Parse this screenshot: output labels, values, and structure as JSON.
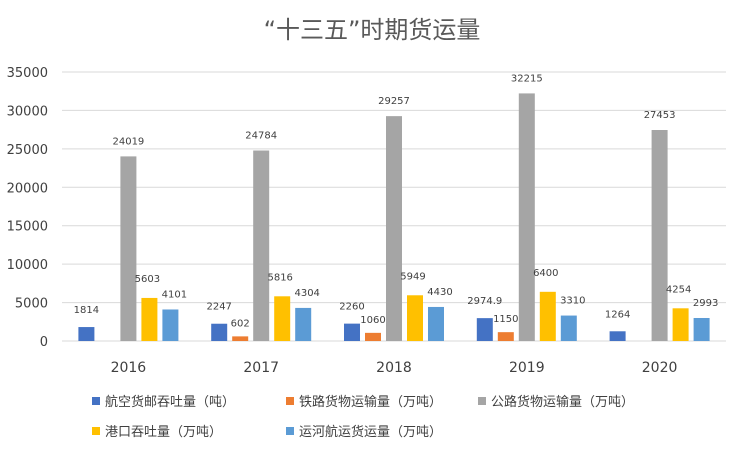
{
  "chart_data": {
    "type": "bar",
    "title": "“十三五”时期货运量",
    "categories": [
      "2016",
      "2017",
      "2018",
      "2019",
      "2020"
    ],
    "ylim": [
      0,
      35000
    ],
    "yticks": [
      0,
      5000,
      10000,
      15000,
      20000,
      25000,
      30000,
      35000
    ],
    "grid": true,
    "legend_position": "bottom",
    "series": [
      {
        "name": "航空货邮吞吐量（吨）",
        "color": "#4472C4",
        "values": [
          1814,
          2247,
          2260,
          2974.9,
          1264
        ],
        "labels": [
          "1814",
          "2247",
          "2260",
          "2974.9",
          "1264"
        ]
      },
      {
        "name": "铁路货物运输量（万吨）",
        "color": "#ED7D31",
        "values": [
          null,
          602,
          1060,
          1150,
          null
        ],
        "labels": [
          "",
          "602",
          "1060",
          "1150",
          ""
        ]
      },
      {
        "name": "公路货物运输量（万吨）",
        "color": "#A5A5A5",
        "values": [
          24019,
          24784,
          29257,
          32215,
          27453
        ],
        "labels": [
          "24019",
          "24784",
          "29257",
          "32215",
          "27453"
        ]
      },
      {
        "name": "港口吞吐量（万吨）",
        "color": "#FFC000",
        "values": [
          5603,
          5816,
          5949,
          6400,
          4254
        ],
        "labels": [
          "5603",
          "5816",
          "5949",
          "6400",
          "4254"
        ]
      },
      {
        "name": "运河航运货运量（万吨）",
        "color": "#5B9BD5",
        "values": [
          4101,
          4304,
          4430,
          3310,
          2993
        ],
        "labels": [
          "4101",
          "4304",
          "4430",
          "3310",
          "2993"
        ]
      }
    ]
  }
}
